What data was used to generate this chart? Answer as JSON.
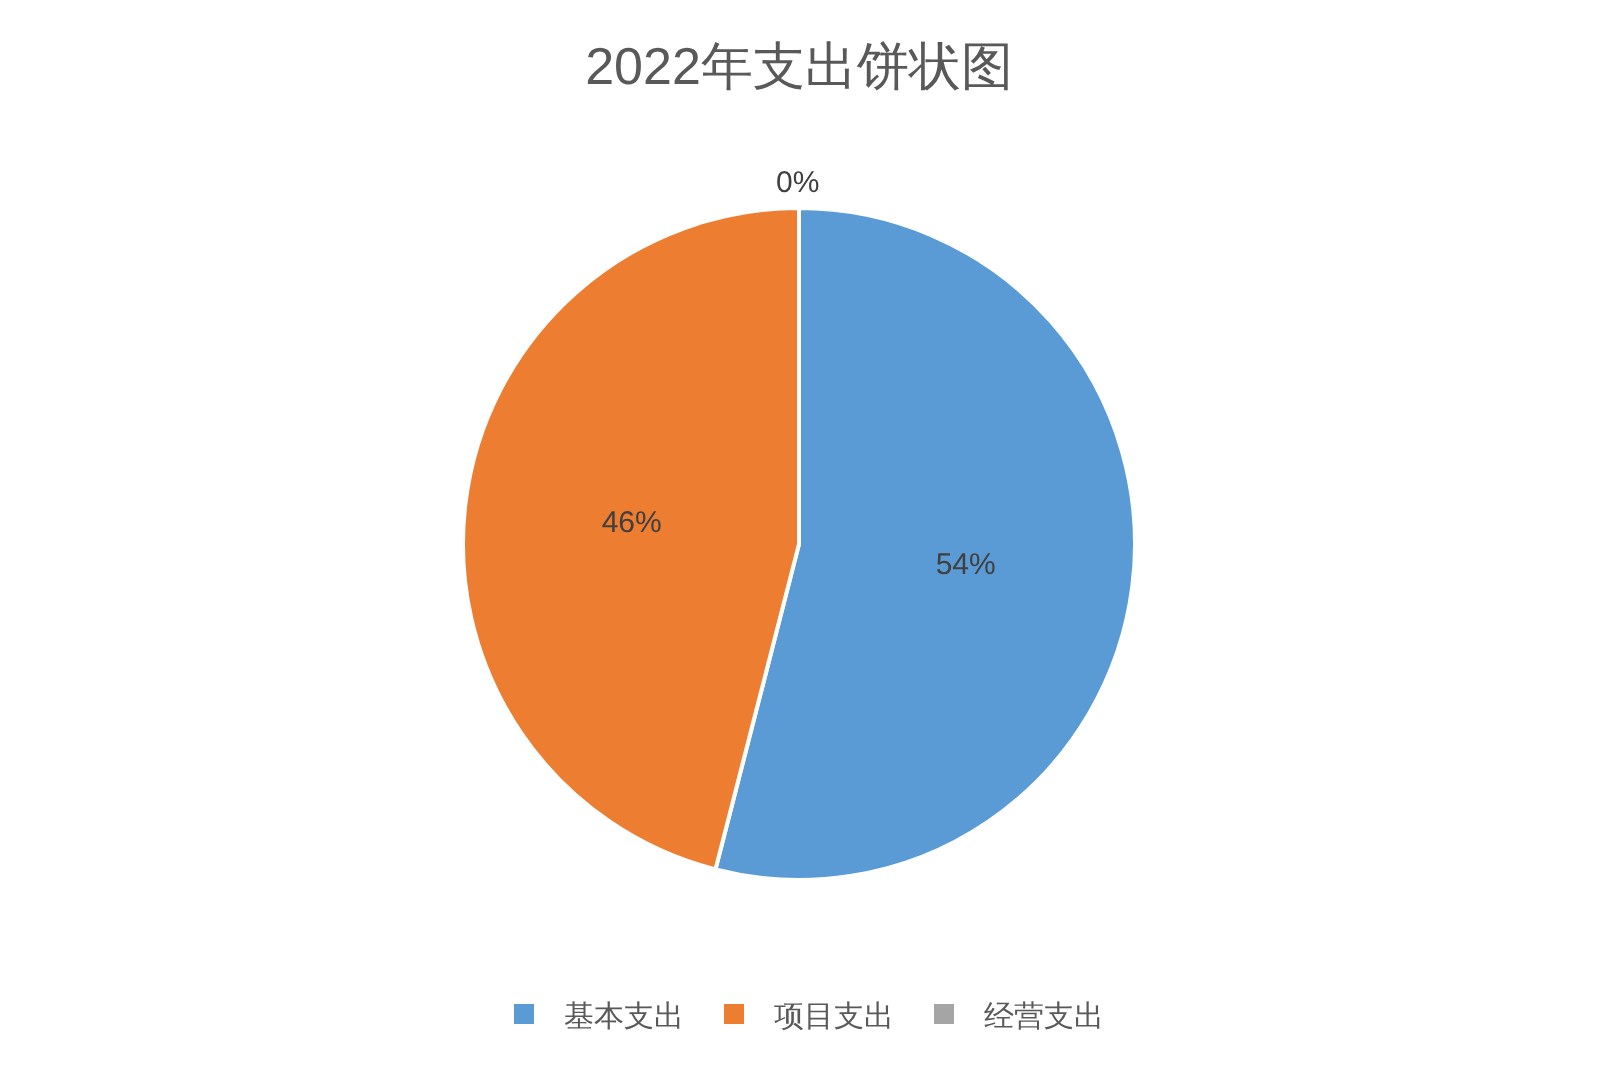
{
  "chart_data": {
    "type": "pie",
    "title": "2022年支出饼状图",
    "categories": [
      "基本支出",
      "项目支出",
      "经营支出"
    ],
    "values": [
      54,
      46,
      0
    ],
    "colors": [
      "#5b9bd5",
      "#ed7d31",
      "#a5a5a5"
    ],
    "value_labels": [
      "54%",
      "46%",
      "0%"
    ],
    "legend": "bottom"
  }
}
